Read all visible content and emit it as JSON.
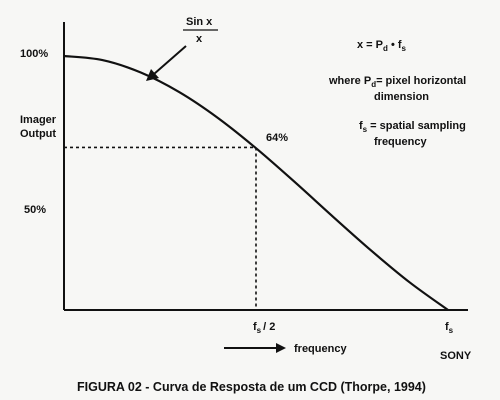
{
  "chart_data": {
    "type": "line",
    "title": "",
    "ylabel": [
      "Imager",
      "Output"
    ],
    "xlabel": "frequency",
    "ylim": [
      0,
      100
    ],
    "xlim": [
      0,
      1
    ],
    "y_ticks": [
      "100%",
      "50%"
    ],
    "x_ticks": [
      {
        "base": "f",
        "sub": "s",
        "tail": "/ 2"
      },
      {
        "base": "f",
        "sub": "s",
        "tail": ""
      }
    ],
    "series": [
      {
        "x": [
          0,
          0.1,
          0.2,
          0.3,
          0.4,
          0.5,
          0.6,
          0.7,
          0.8,
          0.9,
          1.0
        ],
        "y": [
          100,
          98.4,
          93.5,
          85.8,
          75.7,
          63.7,
          50.5,
          36.8,
          23.4,
          10.9,
          0
        ]
      }
    ],
    "curve_label": {
      "num": "Sin x",
      "den": "x"
    },
    "marked_point": {
      "x": 0.5,
      "y": 64,
      "label": "64%"
    }
  },
  "annotations": {
    "eq_main": {
      "pre": "x = P",
      "sub1": "d",
      "mid": " • f",
      "sub2": "s"
    },
    "where_line1": {
      "pre": "where P",
      "sub": "d",
      "post": "= pixel horizontal"
    },
    "where_line2": "dimension",
    "fs_line1": {
      "pre": "f",
      "sub": "s",
      "post": " = spatial sampling"
    },
    "fs_line2": "frequency",
    "brand": "SONY"
  },
  "caption": "FIGURA 02 - Curva de Resposta de um CCD (Thorpe, 1994)"
}
